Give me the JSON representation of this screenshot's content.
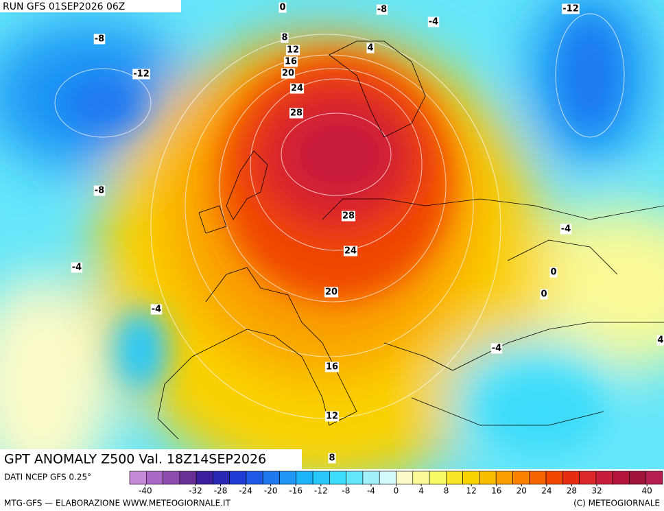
{
  "header": {
    "run": "RUN GFS 01SEP2026 06Z"
  },
  "title": "GPT ANOMALY Z500 Val. 18Z14SEP2026",
  "source": "DATI NCEP GFS 0.25°",
  "footer_left": "MTG-GFS — ELABORAZIONE WWW.METEOGIORNALE.IT",
  "footer_right": "(C) METEOGIORNALE",
  "contour_labels": [
    0,
    -8,
    -4,
    -12,
    -8,
    8,
    4,
    12,
    16,
    -12,
    20,
    24,
    28,
    -8,
    28,
    -4,
    24,
    -4,
    0,
    20,
    0,
    -4,
    -4,
    4,
    16,
    12,
    8
  ],
  "colorbar": {
    "lim": [
      -42.5,
      42.5
    ],
    "ticks": [
      -40,
      -32,
      -28,
      -24,
      -20,
      -16,
      -12,
      -8,
      -4,
      0,
      4,
      8,
      12,
      16,
      20,
      24,
      28,
      32,
      40
    ],
    "colors": [
      "#c58bd8",
      "#a868c8",
      "#8c4cb0",
      "#6a3094",
      "#3c1e9c",
      "#2828b4",
      "#1e3cd2",
      "#1e5ae6",
      "#1e78f0",
      "#1e96f5",
      "#1eb4fa",
      "#28c8fa",
      "#3cdcfa",
      "#64e6fa",
      "#a0f0fa",
      "#d2fafa",
      "#fafac8",
      "#fafa96",
      "#fafa64",
      "#fae628",
      "#fad200",
      "#fabe00",
      "#faa000",
      "#fa8200",
      "#f56400",
      "#f04600",
      "#e62d14",
      "#dc2828",
      "#c81e3c",
      "#b4143c",
      "#a0143c",
      "#b41e50"
    ]
  }
}
